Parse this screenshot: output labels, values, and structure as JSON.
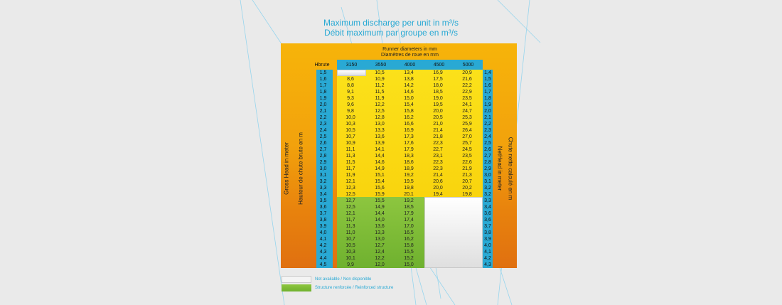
{
  "title": {
    "line1": "Maximum discharge per unit in m³/s",
    "line2": "Débit maximum par groupe en m³/s"
  },
  "chart_data": {
    "type": "table",
    "header": {
      "runner_en": "Runner diameters in mm",
      "runner_fr": "Diamètres de roue en mm",
      "hbrute": "Hbrute"
    },
    "diameters": [
      "3150",
      "3550",
      "4000",
      "4500",
      "5000"
    ],
    "gross_heads": [
      "1,5",
      "1,6",
      "1,7",
      "1,8",
      "1,9",
      "2,0",
      "2,1",
      "2,2",
      "2,3",
      "2,4",
      "2,5",
      "2,6",
      "2,7",
      "2,8",
      "2,9",
      "3,0",
      "3,1",
      "3,2",
      "3,3",
      "3,4",
      "3,5",
      "3,6",
      "3,7",
      "3,8",
      "3,9",
      "4,0",
      "4,1",
      "4,2",
      "4,3",
      "4,4",
      "4,5"
    ],
    "net_heads": [
      "1,4",
      "1,5",
      "1,6",
      "1,7",
      "1,8",
      "1,9",
      "2,0",
      "2,1",
      "2,2",
      "2,3",
      "2,4",
      "2,5",
      "2,6",
      "2,7",
      "2,8",
      "2,9",
      "3,0",
      "3,1",
      "3,2",
      "3,2",
      "3,3",
      "3,4",
      "3,6",
      "3,6",
      "3,7",
      "3,8",
      "3,9",
      "4,0",
      "4,1",
      "4,2",
      "4,3"
    ],
    "values": {
      "3150": [
        "",
        "8,6",
        "8,8",
        "9,1",
        "9,3",
        "9,6",
        "9,8",
        "10,0",
        "10,3",
        "10,5",
        "10,7",
        "10,9",
        "11,1",
        "11,3",
        "11,5",
        "11,7",
        "11,9",
        "12,1",
        "12,3",
        "12,5",
        "12,7",
        "12,5",
        "12,1",
        "11,7",
        "11,3",
        "11,0",
        "10,7",
        "10,5",
        "10,3",
        "10,1",
        "9,9"
      ],
      "3550": [
        "10,5",
        "10,9",
        "11,2",
        "11,5",
        "11,9",
        "12,2",
        "12,5",
        "12,8",
        "13,0",
        "13,3",
        "13,6",
        "13,9",
        "14,1",
        "14,4",
        "14,6",
        "14,9",
        "15,1",
        "15,4",
        "15,6",
        "15,9",
        "15,5",
        "14,9",
        "14,4",
        "14,0",
        "13,6",
        "13,3",
        "13,0",
        "12,7",
        "12,4",
        "12,2",
        "12,0"
      ],
      "4000": [
        "13,4",
        "13,8",
        "14,2",
        "14,6",
        "15,0",
        "15,4",
        "15,8",
        "16,2",
        "16,6",
        "16,9",
        "17,3",
        "17,6",
        "17,9",
        "18,3",
        "18,6",
        "18,9",
        "19,2",
        "19,5",
        "19,8",
        "20,1",
        "19,2",
        "18,5",
        "17,9",
        "17,4",
        "17,0",
        "16,5",
        "16,2",
        "15,8",
        "15,5",
        "15,2",
        "15,0"
      ],
      "4500": [
        "16,9",
        "17,5",
        "18,0",
        "18,5",
        "19,0",
        "19,5",
        "20,0",
        "20,5",
        "21,0",
        "21,4",
        "21,8",
        "22,3",
        "22,7",
        "23,1",
        "22,3",
        "22,3",
        "21,4",
        "20,6",
        "20,0",
        "19,4",
        "",
        "",
        "",
        "",
        "",
        "",
        "",
        "",
        "",
        "",
        ""
      ],
      "5000": [
        "20,9",
        "21,6",
        "22,2",
        "22,9",
        "23,5",
        "24,1",
        "24,7",
        "25,3",
        "25,9",
        "26,4",
        "27,0",
        "25,7",
        "24,5",
        "23,5",
        "22,6",
        "21,9",
        "21,3",
        "20,7",
        "20,2",
        "19,8",
        "",
        "",
        "",
        "",
        "",
        "",
        "",
        "",
        "",
        "",
        ""
      ]
    },
    "axis_labels": {
      "gross_en": "Gross Head in meter",
      "gross_fr": "Hauteur de chute brute en m",
      "net_en": "NetHead in meter",
      "net_fr": "Chute nette calculé en m"
    },
    "legend": [
      {
        "label": "Not available / Non disponible",
        "color": "#f2f2f2"
      },
      {
        "label": "Structure renforcée / Reinforced structure",
        "color": "#7dbb35"
      }
    ],
    "colors": {
      "panel": "#f2a20c",
      "header": "#29a9d4",
      "standard": "#fbe11a",
      "reinforced": "#7dbb35",
      "unavailable": "#f2f2f2"
    }
  }
}
